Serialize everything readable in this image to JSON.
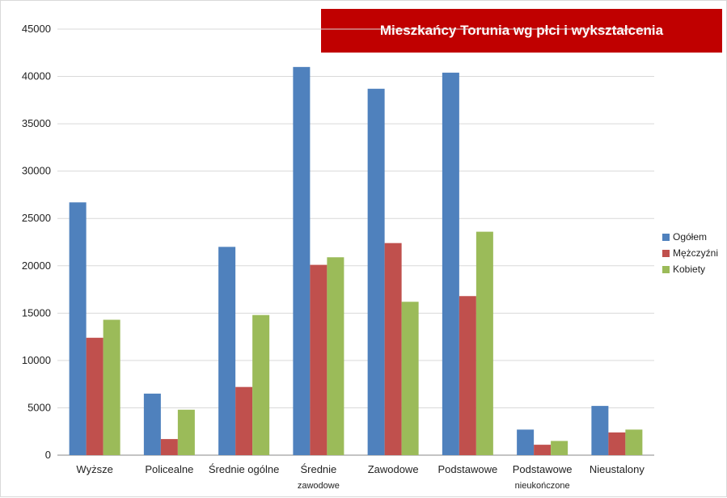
{
  "chart_data": {
    "type": "bar",
    "title": "Mieszkańcy Torunia wg płci i wykształcenia",
    "categories": [
      "Wyższe",
      "Policealne",
      "Średnie ogólne",
      "Średnie\nzawodowe",
      "Zawodowe",
      "Podstawowe",
      "Podstawowe\nnieukończone",
      "Nieustalony"
    ],
    "series": [
      {
        "name": "Ogółem",
        "color": "#4f81bd",
        "values": [
          26700,
          6500,
          22000,
          41000,
          38700,
          40400,
          2700,
          5200
        ]
      },
      {
        "name": "Mężczyźni",
        "color": "#c0504d",
        "values": [
          12400,
          1700,
          7200,
          20100,
          22400,
          16800,
          1100,
          2400
        ]
      },
      {
        "name": "Kobiety",
        "color": "#9bbb59",
        "values": [
          14300,
          4800,
          14800,
          20900,
          16200,
          23600,
          1500,
          2700
        ]
      }
    ],
    "ylim": [
      0,
      45000
    ],
    "yticks": [
      0,
      5000,
      10000,
      15000,
      20000,
      25000,
      30000,
      35000,
      40000,
      45000
    ],
    "grid": true,
    "legend": "right"
  }
}
